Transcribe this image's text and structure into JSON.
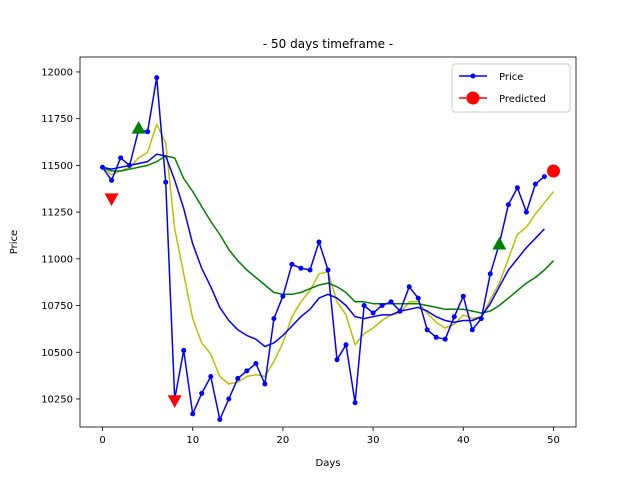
{
  "chart_data": {
    "type": "line",
    "title": "- 50 days timeframe -",
    "xlabel": "Days",
    "ylabel": "Price",
    "xlim": [
      -2.5,
      52.5
    ],
    "ylim": [
      10100,
      12080
    ],
    "xticks": [
      0,
      10,
      20,
      30,
      40,
      50
    ],
    "yticks": [
      10250,
      10500,
      10750,
      11000,
      11250,
      11500,
      11750,
      12000
    ],
    "grid": false,
    "legend_position": "top-right",
    "colors": {
      "price": "#0000ff",
      "ma_short": "#bfbf00",
      "ma_long": "#008000",
      "buy": "#008000",
      "sell": "#ff0000",
      "predicted": "#ff0000"
    },
    "series": [
      {
        "name": "Price",
        "x": [
          0,
          1,
          2,
          3,
          4,
          5,
          6,
          7,
          8,
          9,
          10,
          11,
          12,
          13,
          14,
          15,
          16,
          17,
          18,
          19,
          20,
          21,
          22,
          23,
          24,
          25,
          26,
          27,
          28,
          29,
          30,
          31,
          32,
          33,
          34,
          35,
          36,
          37,
          38,
          39,
          40,
          41,
          42,
          43,
          44,
          45,
          46,
          47,
          48,
          49
        ],
        "values": [
          11490,
          11420,
          11540,
          11500,
          11690,
          11680,
          11970,
          11410,
          10250,
          10510,
          10170,
          10280,
          10370,
          10140,
          10250,
          10360,
          10400,
          10440,
          10330,
          10680,
          10800,
          10970,
          10950,
          10940,
          11090,
          10940,
          10460,
          10540,
          10230,
          10750,
          10710,
          10750,
          10770,
          10720,
          10850,
          10790,
          10620,
          10580,
          10570,
          10690,
          10800,
          10620,
          10680,
          10920,
          11080,
          11290,
          11380,
          11250,
          11400,
          11440
        ]
      },
      {
        "values": [
          11490,
          11480,
          11490,
          11500,
          11510,
          11520,
          11560,
          11550,
          11420,
          11270,
          11080,
          10950,
          10850,
          10740,
          10670,
          10620,
          10590,
          10570,
          10530,
          10550,
          10590,
          10640,
          10690,
          10730,
          10790,
          10810,
          10790,
          10750,
          10690,
          10680,
          10690,
          10700,
          10700,
          10720,
          10730,
          10740,
          10720,
          10690,
          10670,
          10660,
          10670,
          10670,
          10690,
          10760,
          10850,
          10940,
          11000,
          11060,
          11110,
          11160
        ]
      },
      {
        "values": [
          11490,
          11450,
          11470,
          11490,
          11540,
          11570,
          11720,
          11620,
          11160,
          10920,
          10680,
          10550,
          10490,
          10370,
          10330,
          10340,
          10370,
          10380,
          10370,
          10450,
          10550,
          10690,
          10770,
          10830,
          10920,
          10930,
          10770,
          10700,
          10540,
          10600,
          10630,
          10670,
          10700,
          10710,
          10770,
          10770,
          10710,
          10660,
          10630,
          10650,
          10700,
          10680,
          10690,
          10780,
          10870,
          11000,
          11130,
          11170,
          11240,
          11300,
          11360
        ]
      },
      {
        "values": [
          11490,
          11470,
          11470,
          11480,
          11490,
          11500,
          11520,
          11550,
          11540,
          11430,
          11360,
          11280,
          11200,
          11130,
          11050,
          10990,
          10940,
          10900,
          10860,
          10820,
          10810,
          10810,
          10820,
          10840,
          10860,
          10870,
          10850,
          10820,
          10770,
          10770,
          10760,
          10760,
          10760,
          10760,
          10760,
          10760,
          10750,
          10740,
          10730,
          10730,
          10730,
          10720,
          10710,
          10720,
          10750,
          10790,
          10830,
          10870,
          10900,
          10940,
          10990
        ]
      }
    ],
    "buy_signals": [
      {
        "x": 4,
        "y": 11700
      },
      {
        "x": 44,
        "y": 11080
      }
    ],
    "sell_signals": [
      {
        "x": 1,
        "y": 11320
      },
      {
        "x": 8,
        "y": 10240
      }
    ],
    "predicted": {
      "name": "Predicted",
      "x": 50,
      "y": 11470
    }
  }
}
